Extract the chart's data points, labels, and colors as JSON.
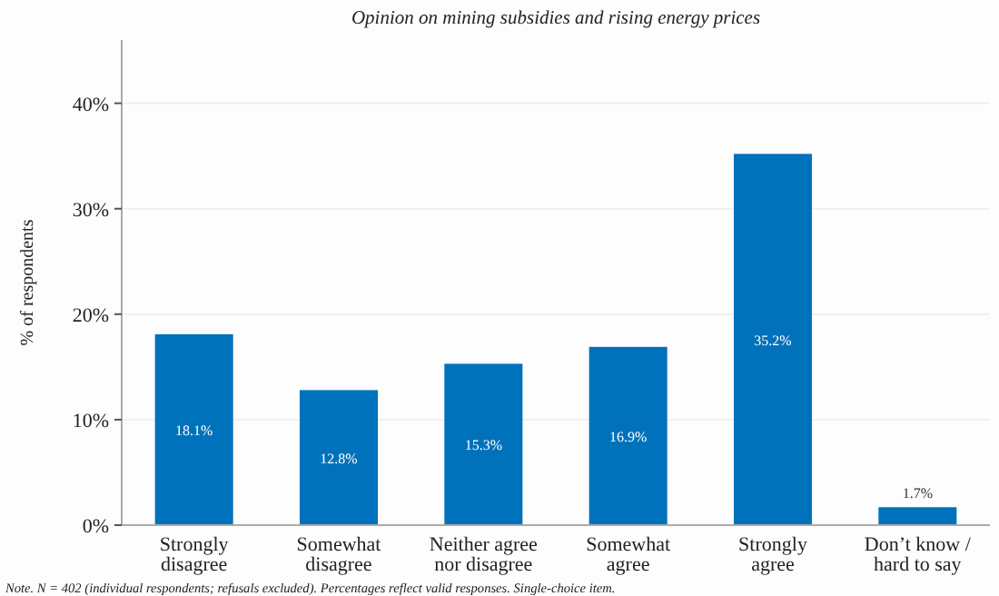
{
  "chart_data": {
    "type": "bar",
    "title": "Opinion on mining subsidies and rising energy prices",
    "ylabel": "% of respondents",
    "categories": [
      "Strongly disagree",
      "Somewhat disagree",
      "Neither agree nor disagree",
      "Somewhat agree",
      "Strongly agree",
      "Don’t know / hard to say"
    ],
    "values": [
      18.1,
      12.8,
      15.3,
      16.9,
      35.2,
      1.7
    ],
    "value_labels": [
      "18.1%",
      "12.8%",
      "15.3%",
      "16.9%",
      "35.2%",
      "1.7%"
    ],
    "color": "#0072bb",
    "ylim": [
      0,
      46
    ],
    "yticks": [
      {
        "value": 0,
        "label": "0%"
      },
      {
        "value": 10,
        "label": "10%"
      },
      {
        "value": 20,
        "label": "20%"
      },
      {
        "value": 30,
        "label": "30%"
      },
      {
        "value": 40,
        "label": "40%"
      }
    ],
    "grid": "y",
    "annotations": [
      "Note. N = 402 (individual respondents; refusals excluded). Percentages reflect valid responses. Single-choice item."
    ]
  }
}
